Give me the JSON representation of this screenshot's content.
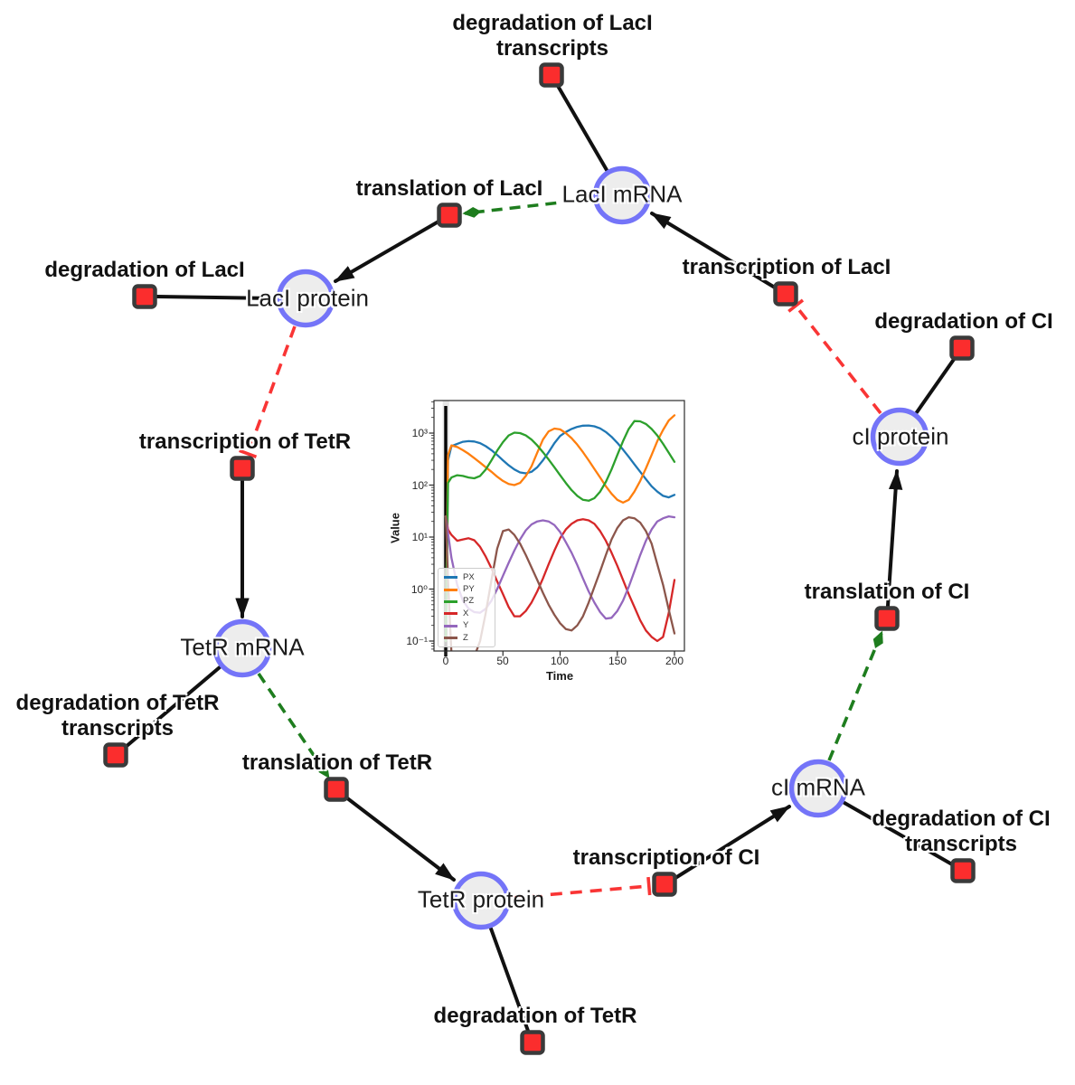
{
  "network": {
    "species": [
      {
        "label": "LacI mRNA"
      },
      {
        "label": "LacI protein"
      },
      {
        "label": "TetR mRNA"
      },
      {
        "label": "TetR protein"
      },
      {
        "label": "cI mRNA"
      },
      {
        "label": "cI protein"
      }
    ],
    "reactions": [
      {
        "label": "degradation of LacI",
        "label2": "transcripts"
      },
      {
        "label": "translation of LacI"
      },
      {
        "label": "degradation of LacI"
      },
      {
        "label": "transcription of TetR"
      },
      {
        "label": "degradation of TetR",
        "label2": "transcripts"
      },
      {
        "label": "translation of TetR"
      },
      {
        "label": "degradation of TetR"
      },
      {
        "label": "transcription of CI"
      },
      {
        "label": "degradation of CI",
        "label2": "transcripts"
      },
      {
        "label": "translation of CI"
      },
      {
        "label": "degradation of CI"
      },
      {
        "label": "transcription of LacI"
      }
    ],
    "colors": {
      "species_fill": "#ededed",
      "species_border": "#7474f8",
      "reaction_fill": "#fb2d2d",
      "reaction_border": "#3a3a3a",
      "production_edge": "#111111",
      "modifier_edge": "#1e7d1e",
      "inhibition_edge": "#f93535"
    }
  },
  "chart_data": {
    "type": "line",
    "title": "",
    "xlabel": "Time",
    "ylabel": "Value",
    "yscale": "log",
    "xlim": [
      -10,
      210
    ],
    "ylim": [
      0.065,
      4200
    ],
    "x_ticks": [
      0,
      50,
      100,
      150,
      200
    ],
    "y_ticks": [
      "10⁻¹",
      "10⁰",
      "10¹",
      "10²",
      "10³"
    ],
    "grid": false,
    "legend_position": "lower left",
    "vline_t": 0,
    "t": [
      0,
      2,
      5,
      10,
      15,
      20,
      25,
      30,
      35,
      40,
      45,
      50,
      55,
      60,
      65,
      70,
      75,
      80,
      85,
      90,
      95,
      100,
      105,
      110,
      115,
      120,
      125,
      130,
      135,
      140,
      145,
      150,
      155,
      160,
      165,
      170,
      175,
      180,
      185,
      190,
      195,
      200
    ],
    "series": [
      {
        "name": "PX",
        "color": "#1f77b4",
        "values": [
          0.1,
          300,
          560,
          620,
          680,
          700,
          690,
          640,
          560,
          470,
          380,
          300,
          240,
          200,
          175,
          168,
          180,
          220,
          300,
          430,
          640,
          880,
          1050,
          1200,
          1320,
          1390,
          1400,
          1350,
          1230,
          1050,
          850,
          650,
          480,
          350,
          250,
          180,
          130,
          95,
          75,
          62,
          58,
          65
        ]
      },
      {
        "name": "PY",
        "color": "#ff7f0e",
        "values": [
          0.1,
          380,
          580,
          540,
          470,
          400,
          330,
          270,
          220,
          180,
          145,
          120,
          105,
          100,
          110,
          150,
          230,
          420,
          750,
          1080,
          1220,
          1180,
          1000,
          800,
          600,
          430,
          300,
          205,
          140,
          95,
          68,
          52,
          46,
          52,
          75,
          120,
          210,
          380,
          700,
          1150,
          1750,
          2200
        ]
      },
      {
        "name": "PZ",
        "color": "#2ca02c",
        "values": [
          0.1,
          110,
          140,
          155,
          150,
          140,
          135,
          150,
          200,
          300,
          460,
          670,
          900,
          1020,
          1000,
          900,
          750,
          580,
          430,
          310,
          220,
          155,
          110,
          80,
          62,
          52,
          50,
          56,
          75,
          115,
          200,
          380,
          700,
          1200,
          1700,
          1680,
          1500,
          1200,
          900,
          620,
          420,
          280
        ]
      },
      {
        "name": "X",
        "color": "#d62728",
        "values": [
          25,
          14,
          11,
          8.5,
          9,
          9.5,
          8.7,
          6.5,
          4.2,
          2.5,
          1.4,
          0.8,
          0.45,
          0.3,
          0.3,
          0.38,
          0.55,
          0.9,
          1.6,
          3,
          5.5,
          9.5,
          14,
          18,
          21,
          22,
          21,
          18,
          13,
          8.5,
          5,
          2.8,
          1.5,
          0.8,
          0.45,
          0.25,
          0.16,
          0.12,
          0.1,
          0.12,
          0.35,
          1.5
        ]
      },
      {
        "name": "Y",
        "color": "#9467bd",
        "values": [
          25,
          12,
          4,
          1.2,
          0.6,
          0.42,
          0.36,
          0.35,
          0.42,
          0.6,
          1.0,
          1.8,
          3.2,
          5.5,
          9,
          13.5,
          17.5,
          20,
          21,
          20,
          17,
          12.5,
          8,
          5,
          2.9,
          1.6,
          0.9,
          0.55,
          0.36,
          0.27,
          0.28,
          0.38,
          0.6,
          1.1,
          2.2,
          4.5,
          8.5,
          14,
          20,
          23,
          25,
          24
        ]
      },
      {
        "name": "Z",
        "color": "#8c564b",
        "values": [
          25,
          1.5,
          0.06,
          0.03,
          0.025,
          0.03,
          0.05,
          0.1,
          0.35,
          1.5,
          6,
          13,
          14,
          11,
          7.5,
          4.5,
          2.6,
          1.5,
          0.85,
          0.5,
          0.32,
          0.22,
          0.17,
          0.16,
          0.2,
          0.3,
          0.55,
          1.1,
          2.2,
          4.5,
          9,
          15,
          21,
          24,
          23,
          19,
          13,
          7.5,
          3,
          1.2,
          0.4,
          0.14
        ]
      }
    ]
  }
}
